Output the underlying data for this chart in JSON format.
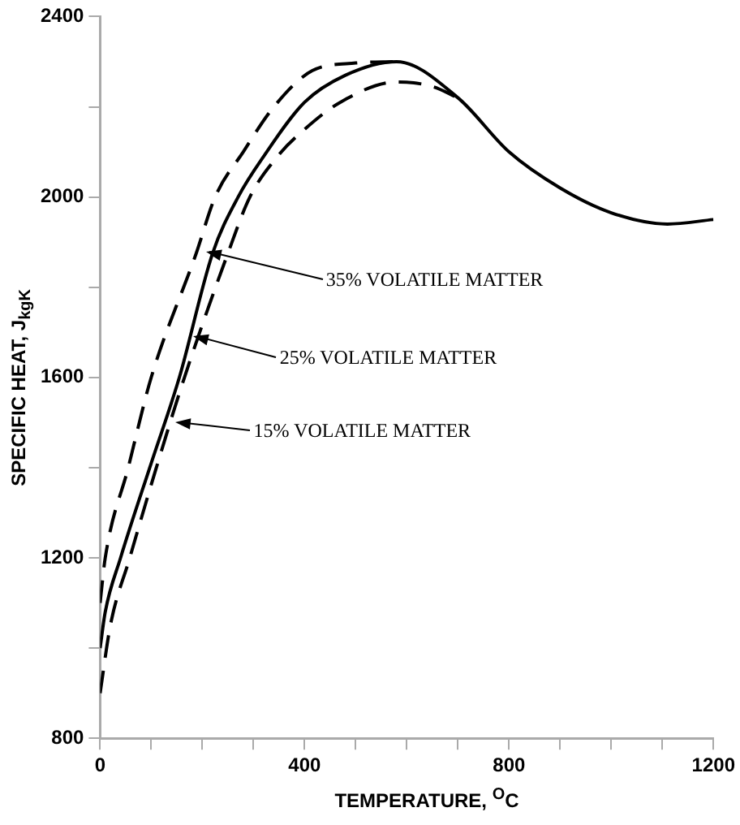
{
  "chart_data": {
    "type": "line",
    "xlabel": "TEMPERATURE, $^{O}$C",
    "ylabel": "SPECIFIC HEAT, J$_{kgK}$",
    "xlim": [
      0,
      1200
    ],
    "xticks": [
      0,
      {
        "value": 100,
        "label": null
      },
      {
        "value": 200,
        "label": null
      },
      {
        "value": 300,
        "label": null
      },
      400,
      {
        "value": 500,
        "label": null
      },
      {
        "value": 600,
        "label": null
      },
      {
        "value": 700,
        "label": null
      },
      800,
      {
        "value": 900,
        "label": null
      },
      {
        "value": 1000,
        "label": null
      },
      {
        "value": 1100,
        "label": null
      },
      1200
    ],
    "ylim": [
      800,
      2400
    ],
    "yticks": [
      800,
      {
        "value": 1000,
        "label": null
      },
      1200,
      {
        "value": 1400,
        "label": null
      },
      1600,
      {
        "value": 1800,
        "label": null
      },
      2000,
      {
        "value": 2200,
        "label": null
      },
      2400
    ],
    "grid": false,
    "legend": false,
    "marker": "none",
    "series": [
      {
        "color": "#000000",
        "line_style": "dashed",
        "x": [
          0,
          10,
          55,
          100,
          188,
          225,
          280,
          340,
          415,
          500,
          580
        ],
        "values": [
          1100,
          1200,
          1400,
          1600,
          1875,
          2000,
          2100,
          2200,
          2280,
          2297,
          2300
        ]
      },
      {
        "color": "#000000",
        "line_style": "solid",
        "x": [
          0,
          10,
          40,
          100,
          155,
          220,
          270,
          320,
          400,
          480,
          580,
          700,
          800,
          900,
          1000,
          1110,
          1200
        ],
        "values": [
          1000,
          1080,
          1200,
          1410,
          1600,
          1875,
          2000,
          2090,
          2210,
          2270,
          2300,
          2220,
          2100,
          2020,
          1965,
          1940,
          1950
        ]
      },
      {
        "color": "#000000",
        "line_style": "dashed",
        "x": [
          0,
          20,
          58,
          110,
          165,
          250,
          293,
          347,
          400,
          470,
          580,
          650,
          700
        ],
        "values": [
          900,
          1050,
          1200,
          1400,
          1600,
          1875,
          2000,
          2090,
          2150,
          2210,
          2255,
          2245,
          2220
        ]
      }
    ],
    "annotations": [
      {
        "text": "35% VOLATILE MATTER",
        "x": 207,
        "y": 1880
      },
      {
        "text": "25% VOLATILE MATTER",
        "x": 183,
        "y": 1690
      },
      {
        "text": "15% VOLATILE MATTER",
        "x": 148,
        "y": 1500
      }
    ]
  }
}
